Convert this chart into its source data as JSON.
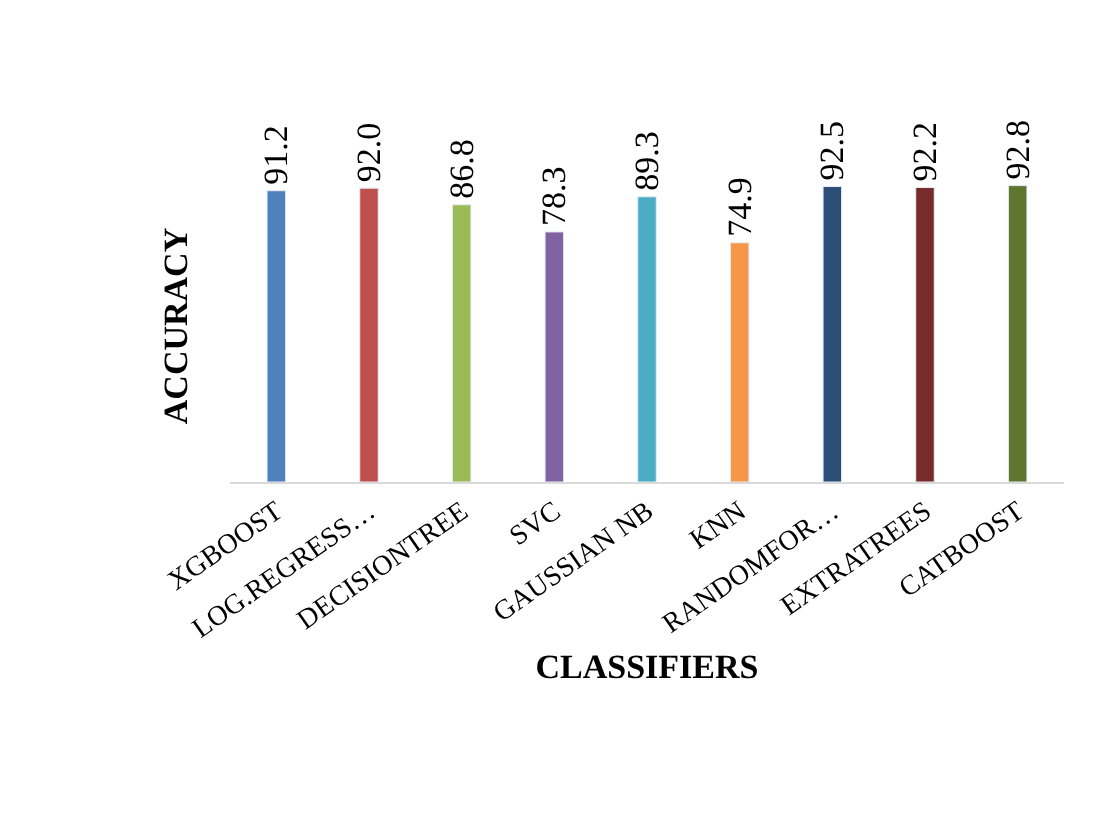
{
  "chart_data": {
    "type": "bar",
    "xlabel": "CLASSIFIERS",
    "ylabel": "ACCURACY",
    "tick_labels": "x",
    "categories": [
      "XGBOOST",
      "LOG.REGRESS…",
      "DECISIONTREE",
      "SVC",
      "GAUSSIAN NB",
      "KNN",
      "RANDOMFOR…",
      "EXTRATREES",
      "CATBOOST"
    ],
    "values": [
      91.2,
      92.0,
      86.8,
      78.3,
      89.3,
      74.9,
      92.5,
      92.2,
      92.8
    ],
    "value_labels": [
      "91.2",
      "92.0",
      "86.8",
      "78.3",
      "89.3",
      "74.9",
      "92.5",
      "92.2",
      "92.8"
    ],
    "colors": [
      "#4f81bd",
      "#c0504d",
      "#9bbb59",
      "#8064a2",
      "#4bacc6",
      "#f79646",
      "#2c4d75",
      "#772c2a",
      "#5f7530"
    ]
  }
}
